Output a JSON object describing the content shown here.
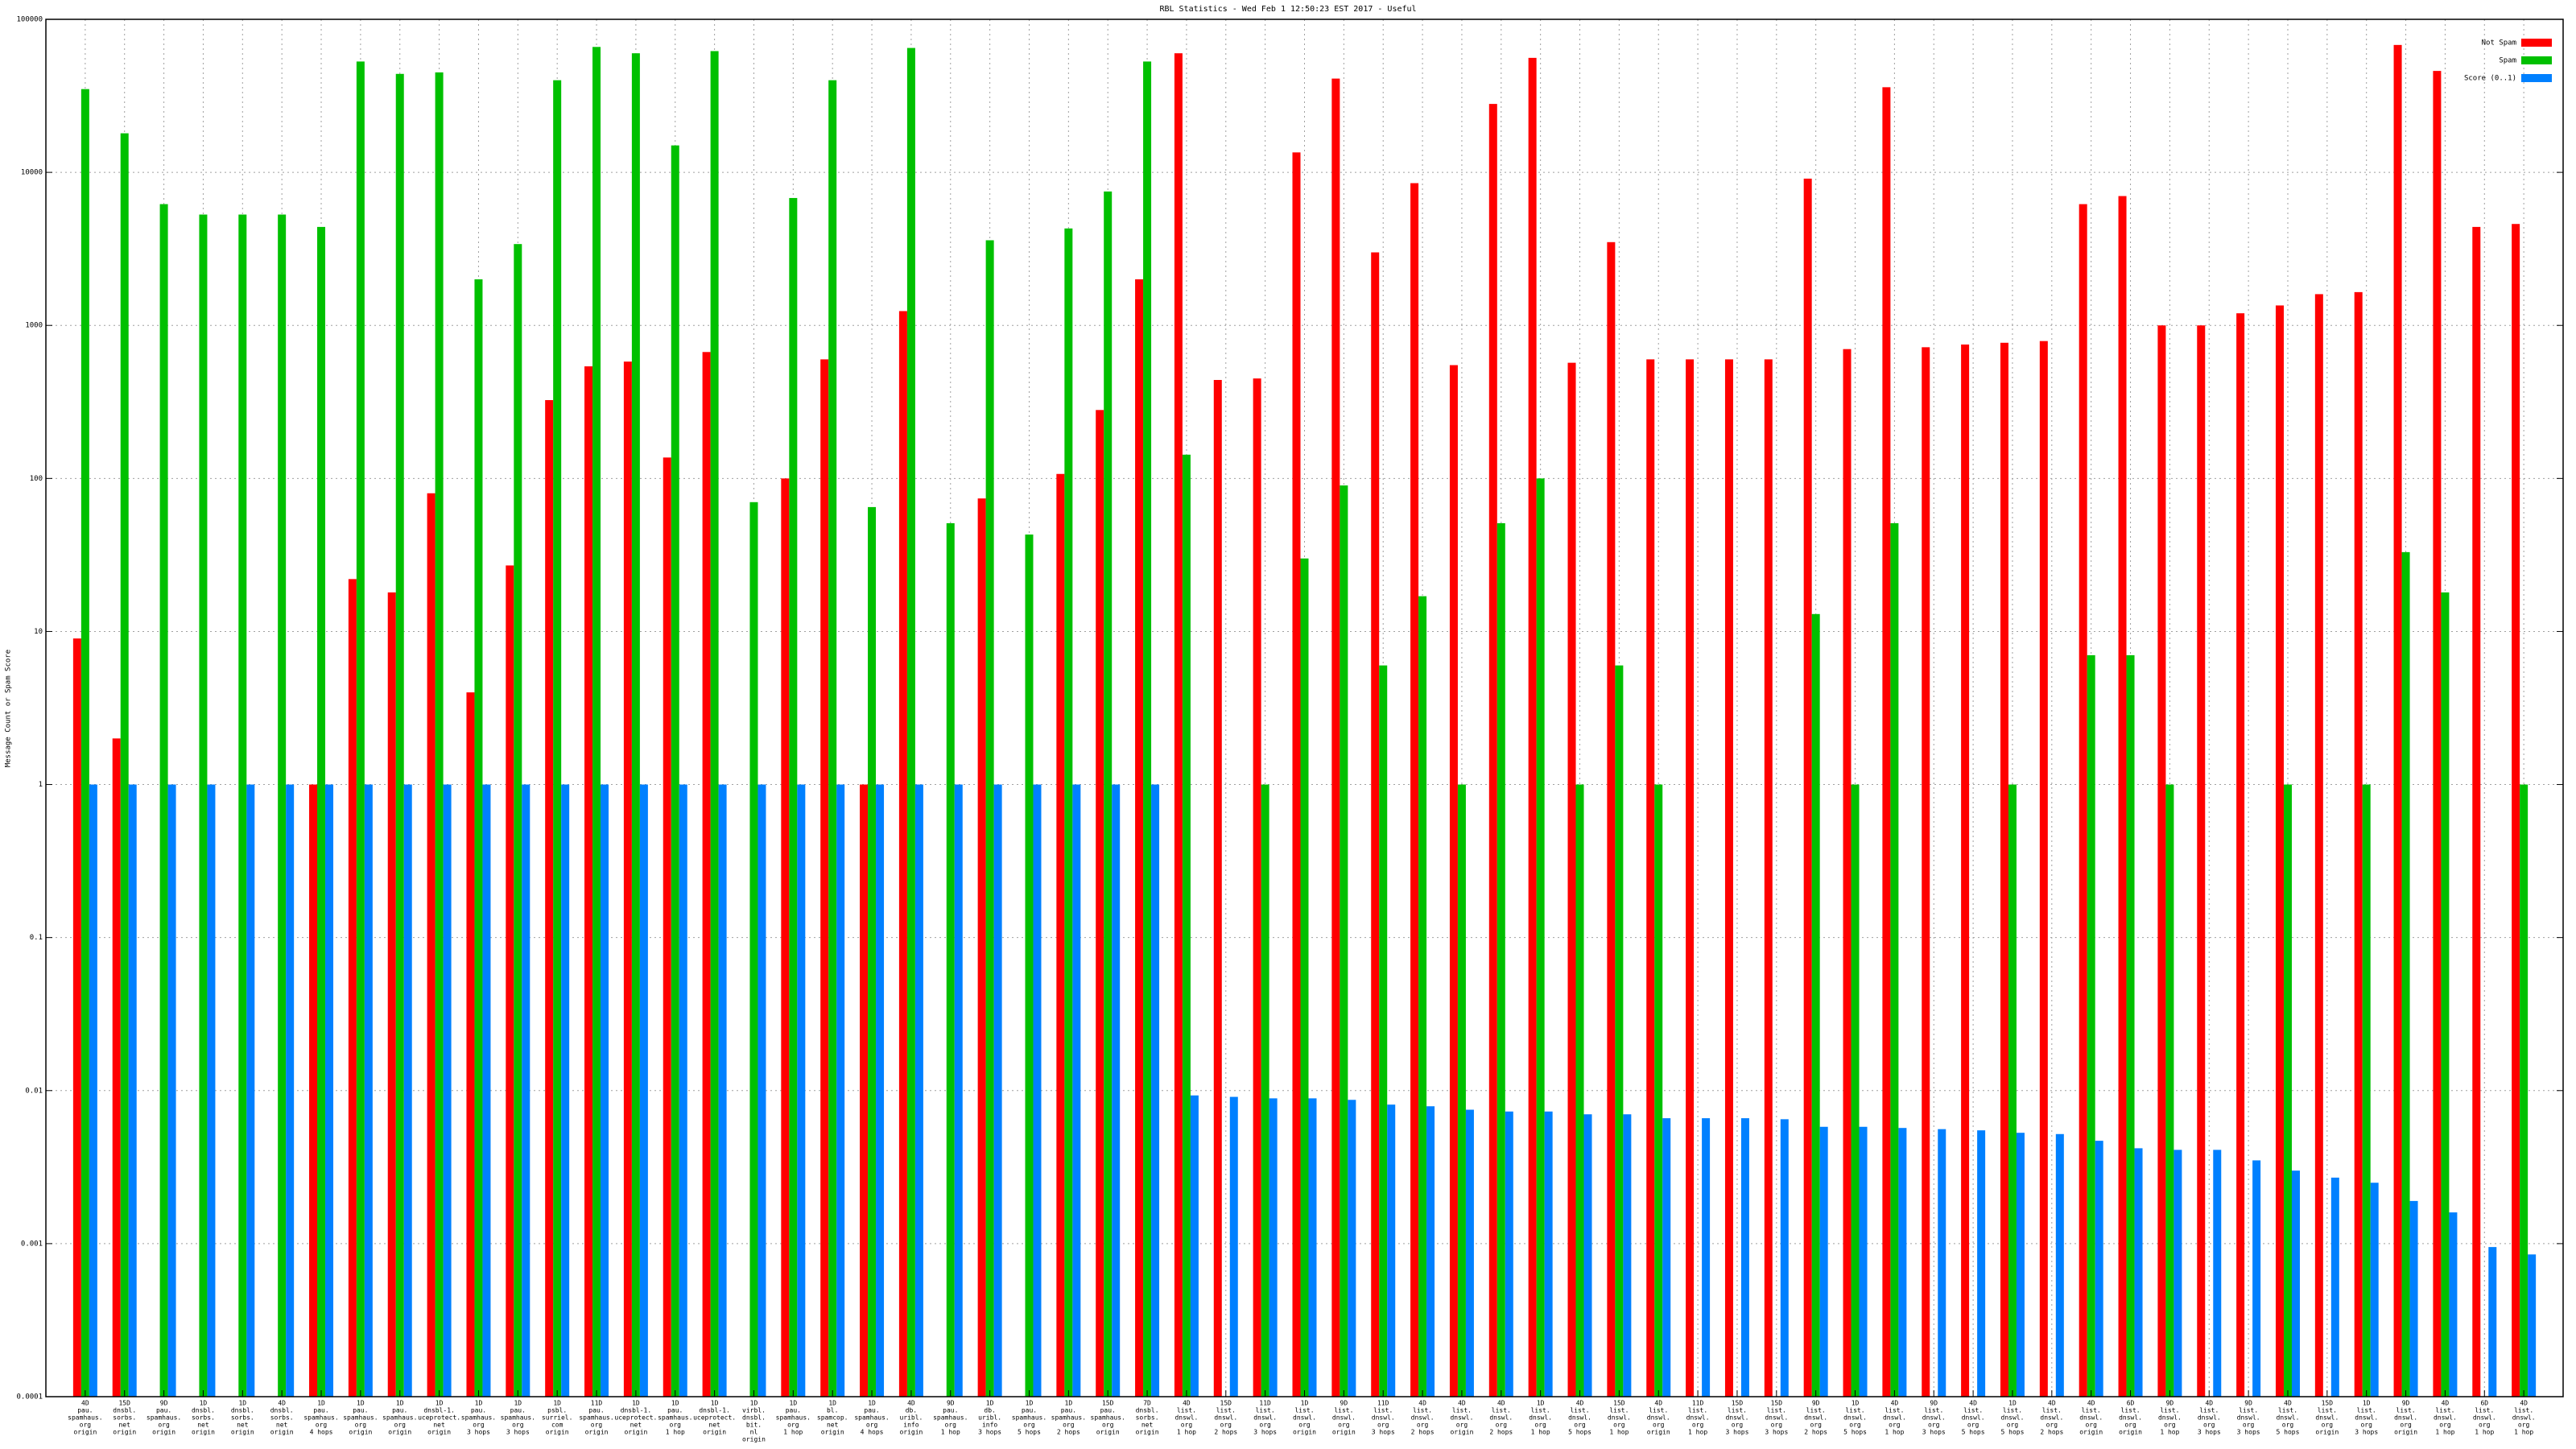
{
  "chart_data": {
    "type": "bar",
    "title": "RBL Statistics - Wed Feb  1 12:50:23 EST 2017 - Useful",
    "ylabel": "Message Count or Spam Score",
    "log_y": true,
    "grid": true,
    "legend": "top-right",
    "ylim": [
      0.0001,
      100000
    ],
    "yticks": [
      0.0001,
      0.001,
      0.01,
      0.1,
      1,
      10,
      100,
      1000,
      10000,
      100000
    ],
    "categories": [
      [
        "4D",
        "pau.",
        "spamhaus.",
        "org",
        "origin"
      ],
      [
        "15D",
        "dnsbl.",
        "sorbs.",
        "net",
        "origin"
      ],
      [
        "9D",
        "pau.",
        "spamhaus.",
        "org",
        "origin"
      ],
      [
        "1D",
        "dnsbl.",
        "sorbs.",
        "net",
        "origin"
      ],
      [
        "1D",
        "dnsbl.",
        "sorbs.",
        "net",
        "origin"
      ],
      [
        "4D",
        "dnsbl.",
        "sorbs.",
        "net",
        "origin"
      ],
      [
        "1D",
        "pau.",
        "spamhaus.",
        "org",
        "4 hops"
      ],
      [
        "1D",
        "pau.",
        "spamhaus.",
        "org",
        "origin"
      ],
      [
        "1D",
        "pau.",
        "spamhaus.",
        "org",
        "origin"
      ],
      [
        "1D",
        "dnsbl-1.",
        "uceprotect.",
        "net",
        "origin"
      ],
      [
        "1D",
        "pau.",
        "spamhaus.",
        "org",
        "3 hops"
      ],
      [
        "1D",
        "pau.",
        "spamhaus.",
        "org",
        "3 hops"
      ],
      [
        "1D",
        "psbl.",
        "surriel.",
        "com",
        "origin"
      ],
      [
        "11D",
        "pau.",
        "spamhaus.",
        "org",
        "origin"
      ],
      [
        "1D",
        "dnsbl-1.",
        "uceprotect.",
        "net",
        "origin"
      ],
      [
        "1D",
        "pau.",
        "spamhaus.",
        "org",
        "1 hop"
      ],
      [
        "1D",
        "dnsbl-1.",
        "uceprotect.",
        "net",
        "origin"
      ],
      [
        "1D",
        "virbl.",
        "dnsbl.",
        "bit.",
        "nl",
        "origin"
      ],
      [
        "1D",
        "pau.",
        "spamhaus.",
        "org",
        "1 hop"
      ],
      [
        "1D",
        "bl.",
        "spamcop.",
        "net",
        "origin"
      ],
      [
        "1D",
        "pau.",
        "spamhaus.",
        "org",
        "4 hops"
      ],
      [
        "4D",
        "db.",
        "uribl.",
        "info",
        "origin"
      ],
      [
        "9D",
        "pau.",
        "spamhaus.",
        "org",
        "1 hop"
      ],
      [
        "1D",
        "db.",
        "uribl.",
        "info",
        "3 hops"
      ],
      [
        "1D",
        "pau.",
        "spamhaus.",
        "org",
        "5 hops"
      ],
      [
        "1D",
        "pau.",
        "spamhaus.",
        "org",
        "2 hops"
      ],
      [
        "15D",
        "pau.",
        "spamhaus.",
        "org",
        "origin"
      ],
      [
        "7D",
        "dnsbl.",
        "sorbs.",
        "net",
        "origin"
      ],
      [
        "4D",
        "list.",
        "dnswl.",
        "org",
        "1 hop"
      ],
      [
        "15D",
        "list.",
        "dnswl.",
        "org",
        "2 hops"
      ],
      [
        "11D",
        "list.",
        "dnswl.",
        "org",
        "3 hops"
      ],
      [
        "1D",
        "list.",
        "dnswl.",
        "org",
        "origin"
      ],
      [
        "9D",
        "list.",
        "dnswl.",
        "org",
        "origin"
      ],
      [
        "11D",
        "list.",
        "dnswl.",
        "org",
        "3 hops"
      ],
      [
        "4D",
        "list.",
        "dnswl.",
        "org",
        "2 hops"
      ],
      [
        "4D",
        "list.",
        "dnswl.",
        "org",
        "origin"
      ],
      [
        "4D",
        "list.",
        "dnswl.",
        "org",
        "2 hops"
      ],
      [
        "1D",
        "list.",
        "dnswl.",
        "org",
        "1 hop"
      ],
      [
        "4D",
        "list.",
        "dnswl.",
        "org",
        "5 hops"
      ],
      [
        "15D",
        "list.",
        "dnswl.",
        "org",
        "1 hop"
      ],
      [
        "4D",
        "list.",
        "dnswl.",
        "org",
        "origin"
      ],
      [
        "11D",
        "list.",
        "dnswl.",
        "org",
        "1 hop"
      ],
      [
        "15D",
        "list.",
        "dnswl.",
        "org",
        "3 hops"
      ],
      [
        "15D",
        "list.",
        "dnswl.",
        "org",
        "3 hops"
      ],
      [
        "9D",
        "list.",
        "dnswl.",
        "org",
        "2 hops"
      ],
      [
        "1D",
        "list.",
        "dnswl.",
        "org",
        "5 hops"
      ],
      [
        "4D",
        "list.",
        "dnswl.",
        "org",
        "1 hop"
      ],
      [
        "9D",
        "list.",
        "dnswl.",
        "org",
        "3 hops"
      ],
      [
        "4D",
        "list.",
        "dnswl.",
        "org",
        "5 hops"
      ],
      [
        "1D",
        "list.",
        "dnswl.",
        "org",
        "5 hops"
      ],
      [
        "4D",
        "list.",
        "dnswl.",
        "org",
        "2 hops"
      ],
      [
        "4D",
        "list.",
        "dnswl.",
        "org",
        "origin"
      ],
      [
        "6D",
        "list.",
        "dnswl.",
        "org",
        "origin"
      ],
      [
        "9D",
        "list.",
        "dnswl.",
        "org",
        "1 hop"
      ],
      [
        "4D",
        "list.",
        "dnswl.",
        "org",
        "3 hops"
      ],
      [
        "9D",
        "list.",
        "dnswl.",
        "org",
        "3 hops"
      ],
      [
        "4D",
        "list.",
        "dnswl.",
        "org",
        "5 hops"
      ],
      [
        "15D",
        "list.",
        "dnswl.",
        "org",
        "origin"
      ],
      [
        "1D",
        "list.",
        "dnswl.",
        "org",
        "3 hops"
      ],
      [
        "9D",
        "list.",
        "dnswl.",
        "org",
        "origin"
      ],
      [
        "4D",
        "list.",
        "dnswl.",
        "org",
        "1 hop"
      ],
      [
        "6D",
        "list.",
        "dnswl.",
        "org",
        "1 hop"
      ],
      [
        "4D",
        "list.",
        "dnswl.",
        "org",
        "1 hop"
      ]
    ],
    "series": [
      {
        "name": "Not Spam",
        "color": "#ff0000",
        "values": [
          9,
          2,
          null,
          null,
          null,
          null,
          1,
          22,
          18,
          80,
          4,
          27,
          325,
          540,
          580,
          137,
          670,
          null,
          100,
          600,
          1,
          1240,
          null,
          74,
          null,
          107,
          280,
          2000,
          60000,
          440,
          450,
          13500,
          41000,
          3000,
          8500,
          550,
          28000,
          56000,
          570,
          3500,
          600,
          600,
          600,
          600,
          9100,
          700,
          36000,
          720,
          750,
          770,
          790,
          6200,
          7000,
          1000,
          1000,
          1200,
          1350,
          1600,
          1650,
          68000,
          46000,
          4400,
          4600
        ]
      },
      {
        "name": "Spam",
        "color": "#00c000",
        "values": [
          35000,
          18000,
          6200,
          5300,
          5300,
          5300,
          4400,
          53000,
          44000,
          45000,
          2000,
          3400,
          40000,
          66000,
          60000,
          15000,
          62000,
          70,
          6800,
          40000,
          65,
          65000,
          51,
          3600,
          43,
          4300,
          7500,
          53000,
          143,
          null,
          1,
          30,
          90,
          6,
          17,
          1,
          51,
          100,
          1,
          6,
          1,
          null,
          null,
          null,
          13,
          1,
          51,
          null,
          null,
          1,
          null,
          7,
          7,
          1,
          null,
          null,
          1,
          null,
          1,
          33,
          18,
          null,
          1
        ]
      },
      {
        "name": "Score (0..1)",
        "color": "#0080ff",
        "values": [
          1,
          1,
          1,
          1,
          1,
          1,
          1,
          1,
          1,
          1,
          1,
          1,
          1,
          1,
          1,
          1,
          1,
          1,
          1,
          1,
          1,
          1,
          1,
          1,
          1,
          1,
          1,
          1,
          0.0093,
          0.0091,
          0.0089,
          0.0089,
          0.0087,
          0.0081,
          0.0079,
          0.0075,
          0.0073,
          0.0073,
          0.007,
          0.007,
          0.0066,
          0.0066,
          0.0066,
          0.0065,
          0.0058,
          0.0058,
          0.0057,
          0.0056,
          0.0055,
          0.0053,
          0.0052,
          0.0047,
          0.0042,
          0.0041,
          0.0041,
          0.0035,
          0.003,
          0.0027,
          0.0025,
          0.0019,
          0.0016,
          0.00095,
          0.00085
        ]
      }
    ]
  }
}
